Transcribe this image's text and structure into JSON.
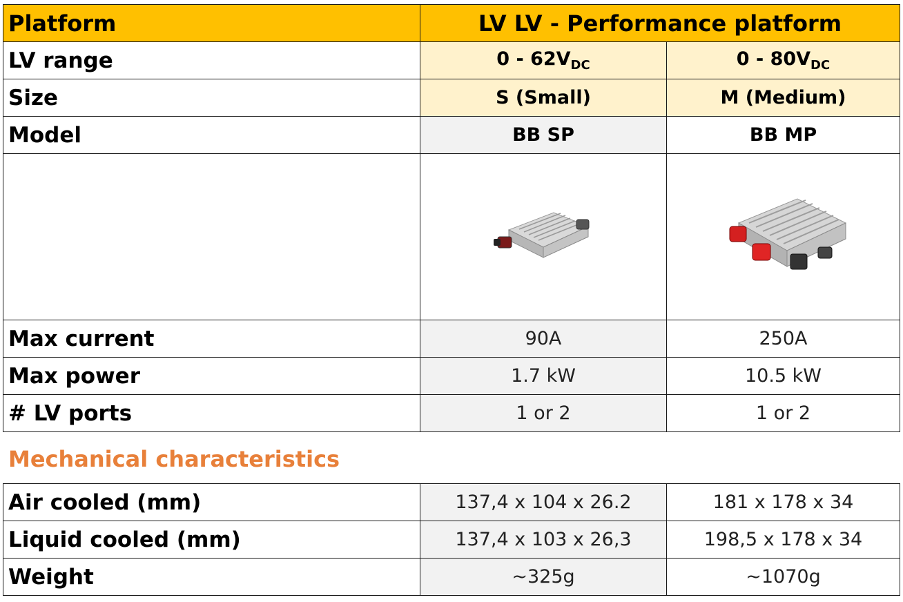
{
  "platform": {
    "label": "Platform",
    "title": "LV  LV - Performance platform"
  },
  "rows": {
    "lv_range": {
      "label": "LV range",
      "s_main": "0 - 62V",
      "s_sub": "DC",
      "m_main": "0 - 80V",
      "m_sub": "DC"
    },
    "size": {
      "label": "Size",
      "s": "S (Small)",
      "m": "M (Medium)"
    },
    "model": {
      "label": "Model",
      "s": "BB SP",
      "m": "BB MP"
    },
    "image": {
      "s_icon": "small-converter-image",
      "m_icon": "medium-converter-image"
    },
    "max_current": {
      "label": "Max current",
      "s": "90A",
      "m": "250A"
    },
    "max_power": {
      "label": "Max power",
      "s": "1.7 kW",
      "m": "10.5 kW"
    },
    "lv_ports": {
      "label": "# LV ports",
      "s": "1 or 2",
      "m": "1 or 2"
    }
  },
  "mechanical": {
    "title": "Mechanical characteristics",
    "air_cooled": {
      "label": "Air cooled (mm)",
      "s": "137,4 x 104 x 26.2",
      "m": "181 x 178 x 34"
    },
    "liquid_cooled": {
      "label": "Liquid cooled (mm)",
      "s": "137,4 x 103 x 26,3",
      "m": "198,5 x 178 x 34"
    },
    "weight": {
      "label": "Weight",
      "s": "~325g",
      "m": "~1070g"
    }
  },
  "colors": {
    "header": "#FFC000",
    "highlight": "#FFF2CC",
    "grey": "#F2F2F2",
    "section_title": "#E8803A"
  }
}
